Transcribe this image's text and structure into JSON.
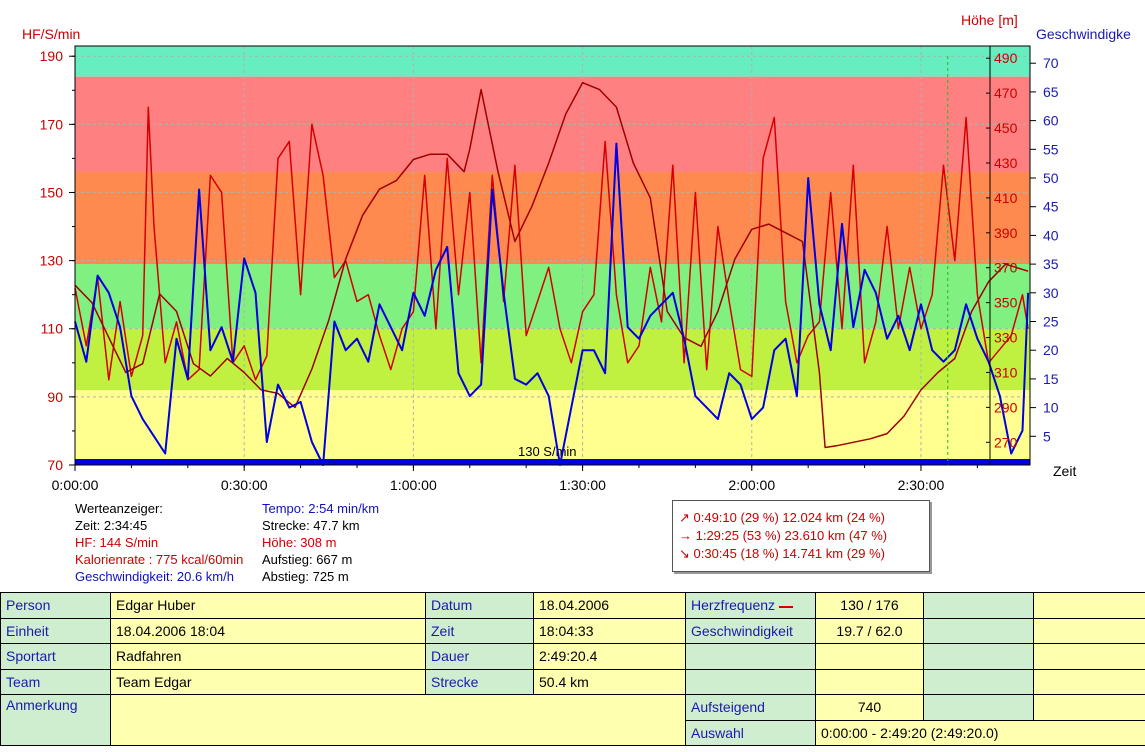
{
  "chart_data": {
    "type": "line",
    "left_axis_title": "HF/S/min",
    "right_axis_title_1": "Höhe [m]",
    "right_axis_title_2": "Geschwindigke",
    "x_axis_title": "Zeit",
    "hr_axis": {
      "range": [
        70,
        193
      ],
      "ticks": [
        190,
        170,
        150,
        130,
        110,
        90,
        70
      ]
    },
    "height_axis": {
      "range": [
        257,
        497
      ],
      "ticks": [
        490,
        470,
        450,
        430,
        410,
        390,
        370,
        350,
        330,
        310,
        290,
        270
      ]
    },
    "speed_axis": {
      "range": [
        0,
        73
      ],
      "ticks": [
        70,
        65,
        60,
        55,
        50,
        45,
        40,
        35,
        30,
        25,
        20,
        15,
        10,
        5
      ]
    },
    "time_axis": {
      "range_seconds": [
        0,
        10160
      ],
      "tick_labels": [
        "0:00:00",
        "0:30:00",
        "1:00:00",
        "1:30:00",
        "2:00:00",
        "2:30:00"
      ]
    },
    "zones": [
      {
        "from": 184,
        "to": 193,
        "color": "#66eec0"
      },
      {
        "from": 156,
        "to": 184,
        "color": "#ff8080"
      },
      {
        "from": 129,
        "to": 156,
        "color": "#ff8a50"
      },
      {
        "from": 110,
        "to": 129,
        "color": "#80f080"
      },
      {
        "from": 92,
        "to": 110,
        "color": "#c0f040"
      },
      {
        "from": 70,
        "to": 92,
        "color": "#ffff90"
      }
    ],
    "threshold_label": "130 S/min",
    "cursor_time_seconds": 9285,
    "series": [
      {
        "name": "HF",
        "color": "#d40000",
        "axis": "hr",
        "x_minutes": [
          0,
          2,
          4,
          6,
          8,
          10,
          12,
          13,
          14,
          16,
          18,
          20,
          22,
          24,
          26,
          28,
          30,
          32,
          34,
          36,
          38,
          40,
          42,
          44,
          46,
          48,
          50,
          52,
          54,
          56,
          58,
          60,
          62,
          64,
          66,
          68,
          70,
          72,
          74,
          76,
          78,
          80,
          82,
          84,
          86,
          88,
          90,
          92,
          94,
          96,
          98,
          100,
          102,
          104,
          106,
          108,
          110,
          112,
          114,
          116,
          118,
          120,
          122,
          124,
          126,
          128,
          130,
          132,
          134,
          136,
          138,
          140,
          142,
          144,
          146,
          148,
          150,
          152,
          154,
          156,
          158,
          160,
          162,
          164,
          166,
          168,
          169
        ],
        "values": [
          122,
          105,
          125,
          95,
          118,
          96,
          108,
          175,
          140,
          100,
          112,
          95,
          98,
          155,
          150,
          100,
          105,
          95,
          102,
          160,
          165,
          120,
          170,
          155,
          125,
          130,
          118,
          120,
          108,
          98,
          110,
          115,
          155,
          110,
          160,
          120,
          150,
          100,
          155,
          118,
          158,
          108,
          118,
          128,
          110,
          100,
          115,
          120,
          165,
          120,
          100,
          105,
          128,
          112,
          158,
          100,
          150,
          98,
          140,
          118,
          98,
          96,
          160,
          172,
          118,
          100,
          108,
          112,
          150,
          110,
          158,
          100,
          112,
          140,
          110,
          128,
          110,
          120,
          158,
          130,
          172,
          120,
          100,
          104,
          108,
          120,
          110
        ]
      },
      {
        "name": "Höhe",
        "color": "#a00000",
        "axis": "height",
        "x_minutes": [
          0,
          3,
          6,
          9,
          12,
          15,
          18,
          21,
          24,
          27,
          30,
          33,
          36,
          39,
          42,
          45,
          48,
          51,
          54,
          57,
          60,
          63,
          66,
          69,
          70,
          72,
          75,
          78,
          81,
          84,
          87,
          90,
          93,
          96,
          99,
          102,
          105,
          108,
          111,
          114,
          117,
          120,
          123,
          126,
          129,
          132,
          133,
          135,
          138,
          141,
          144,
          147,
          150,
          153,
          156,
          159,
          162,
          165,
          169
        ],
        "values": [
          360,
          350,
          330,
          310,
          315,
          355,
          345,
          315,
          308,
          318,
          310,
          300,
          298,
          290,
          312,
          340,
          375,
          400,
          415,
          420,
          432,
          435,
          435,
          425,
          438,
          472,
          425,
          385,
          405,
          430,
          458,
          476,
          472,
          462,
          430,
          410,
          345,
          330,
          325,
          345,
          375,
          392,
          395,
          390,
          385,
          310,
          267,
          268,
          270,
          272,
          275,
          285,
          300,
          310,
          318,
          345,
          362,
          372,
          368
        ]
      },
      {
        "name": "Geschwindigkeit",
        "color": "#0000e0",
        "axis": "speed",
        "x_minutes": [
          0,
          2,
          4,
          6,
          8,
          10,
          12,
          14,
          16,
          18,
          20,
          22,
          24,
          26,
          28,
          30,
          32,
          34,
          36,
          38,
          40,
          42,
          44,
          46,
          48,
          50,
          52,
          54,
          56,
          58,
          60,
          62,
          64,
          66,
          68,
          70,
          72,
          74,
          76,
          78,
          80,
          82,
          84,
          86,
          88,
          90,
          92,
          94,
          96,
          98,
          100,
          102,
          104,
          106,
          108,
          110,
          112,
          114,
          116,
          118,
          120,
          122,
          124,
          126,
          128,
          130,
          132,
          134,
          136,
          138,
          140,
          142,
          144,
          146,
          148,
          150,
          152,
          154,
          156,
          158,
          160,
          162,
          164,
          166,
          168,
          169
        ],
        "values": [
          25,
          18,
          33,
          30,
          24,
          12,
          8,
          5,
          2,
          22,
          15,
          48,
          20,
          24,
          18,
          36,
          30,
          4,
          14,
          10,
          11,
          4,
          0,
          25,
          20,
          22,
          18,
          28,
          24,
          20,
          30,
          26,
          34,
          38,
          16,
          12,
          14,
          48,
          30,
          15,
          14,
          16,
          12,
          0,
          10,
          20,
          20,
          16,
          56,
          24,
          22,
          26,
          28,
          30,
          22,
          12,
          10,
          8,
          16,
          14,
          8,
          10,
          20,
          22,
          12,
          50,
          28,
          20,
          42,
          24,
          34,
          30,
          22,
          26,
          20,
          28,
          20,
          18,
          20,
          28,
          22,
          18,
          12,
          2,
          6,
          30
        ]
      }
    ]
  },
  "readout": {
    "title": "Werteanzeiger:",
    "zeit": "Zeit: 2:34:45",
    "hf": "HF: 144 S/min",
    "kalorien": "Kalorienrate : 775 kcal/60min",
    "geschwindigkeit": "Geschwindigkeit: 20.6 km/h",
    "tempo": "Tempo: 2:54 min/km",
    "strecke": "Strecke: 47.7 km",
    "hoehe": "Höhe: 308 m",
    "aufstieg": "Aufstieg: 667 m",
    "abstieg": "Abstieg: 725 m"
  },
  "summary": {
    "up": "↗ 0:49:10  (29 %)  12.024 km  (24 %)",
    "flat": "→ 1:29:25  (53 %)  23.610 km  (47 %)",
    "down": "↘ 0:30:45  (18 %)  14.741 km  (29 %)"
  },
  "info": {
    "person_label": "Person",
    "person_value": "Edgar Huber",
    "einheit_label": "Einheit",
    "einheit_value": "18.04.2006 18:04",
    "sportart_label": "Sportart",
    "sportart_value": "Radfahren",
    "team_label": "Team",
    "team_value": "Team Edgar",
    "anmerkung_label": "Anmerkung",
    "datum_label": "Datum",
    "datum_value": "18.04.2006",
    "zeit_label": "Zeit",
    "zeit_value": "18:04:33",
    "dauer_label": "Dauer",
    "dauer_value": "2:49:20.4",
    "strecke_label": "Strecke",
    "strecke_value": "50.4 km",
    "herzfrequenz_label": "Herzfrequenz",
    "herzfrequenz_value": "130 / 176",
    "herzfrequenz_color": "#d40000",
    "geschwindigkeit_label": "Geschwindigkeit",
    "geschwindigkeit_value": "19.7 / 62.0",
    "geschwindigkeit_color": "#0000e0",
    "aufsteigend_label": "Aufsteigend",
    "aufsteigend_value": "740",
    "auswahl_label": "Auswahl",
    "auswahl_value": "0:00:00 - 2:49:20 (2:49:20.0)"
  }
}
